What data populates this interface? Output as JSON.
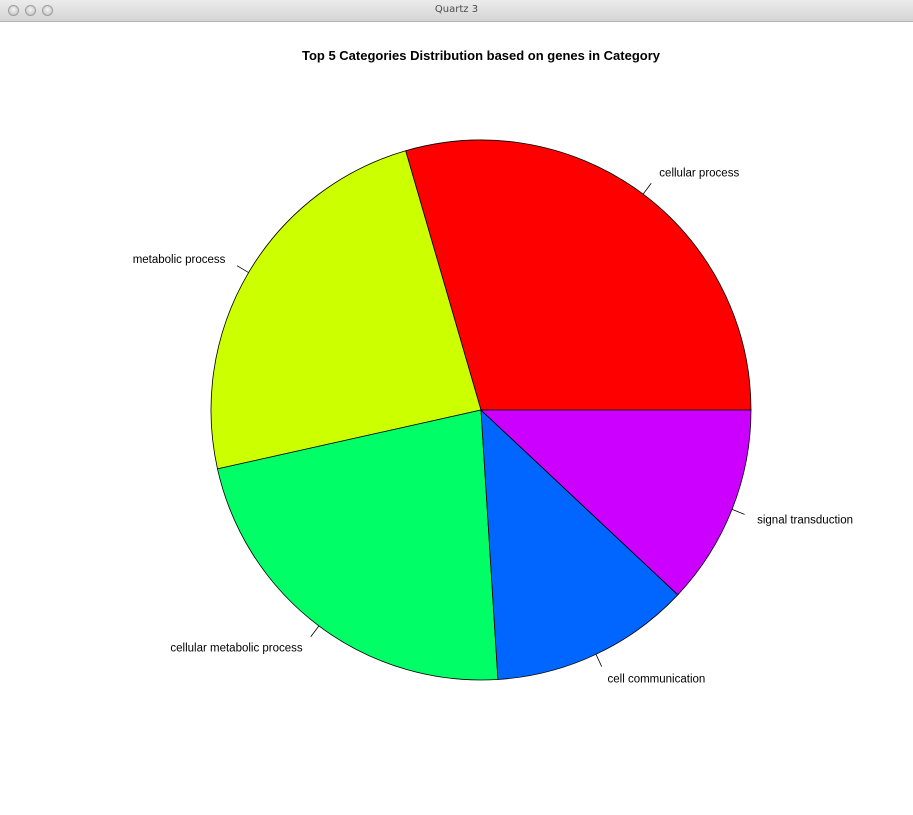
{
  "window": {
    "title": "Quartz 3"
  },
  "chart_data": {
    "type": "pie",
    "title": "Top 5 Categories Distribution based on genes in Category",
    "categories": [
      "cellular process",
      "metabolic process",
      "cellular metabolic process",
      "cell communication",
      "signal transduction"
    ],
    "values": [
      29.5,
      24.0,
      22.5,
      12.0,
      12.0
    ],
    "colors": [
      "#FF0000",
      "#CCFF00",
      "#00FF66",
      "#0066FF",
      "#CC00FF"
    ],
    "start": "right (3 o'clock)",
    "direction": "counterclockwise",
    "legend": "none"
  }
}
